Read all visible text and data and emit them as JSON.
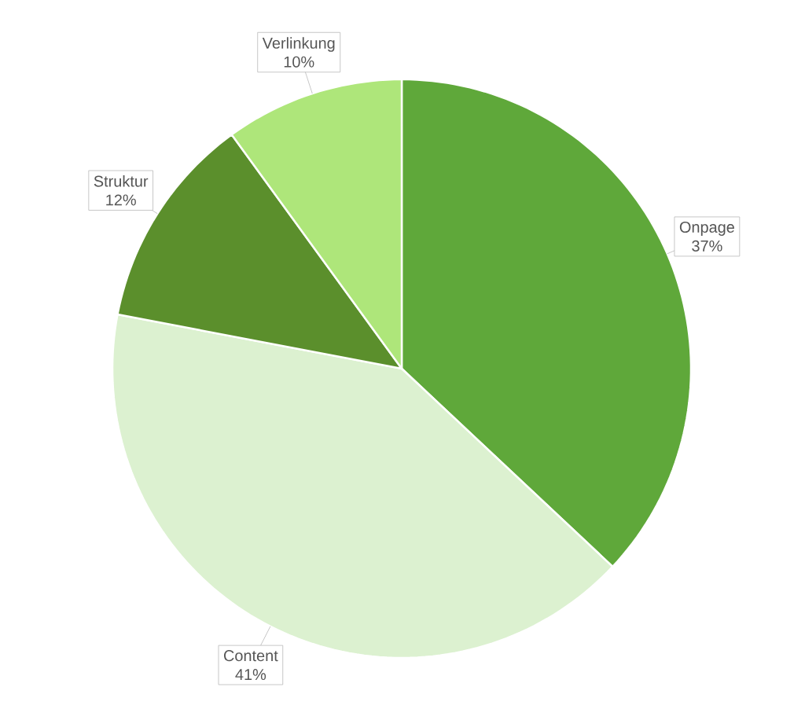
{
  "chart_data": {
    "type": "pie",
    "categories": [
      "Onpage",
      "Content",
      "Struktur",
      "Verlinkung"
    ],
    "values": [
      37,
      41,
      12,
      10
    ],
    "colors": [
      "#5fa83a",
      "#dcf1d0",
      "#5b8f2c",
      "#aee67a"
    ],
    "value_labels": [
      "37%",
      "41%",
      "12%",
      "10%"
    ]
  }
}
